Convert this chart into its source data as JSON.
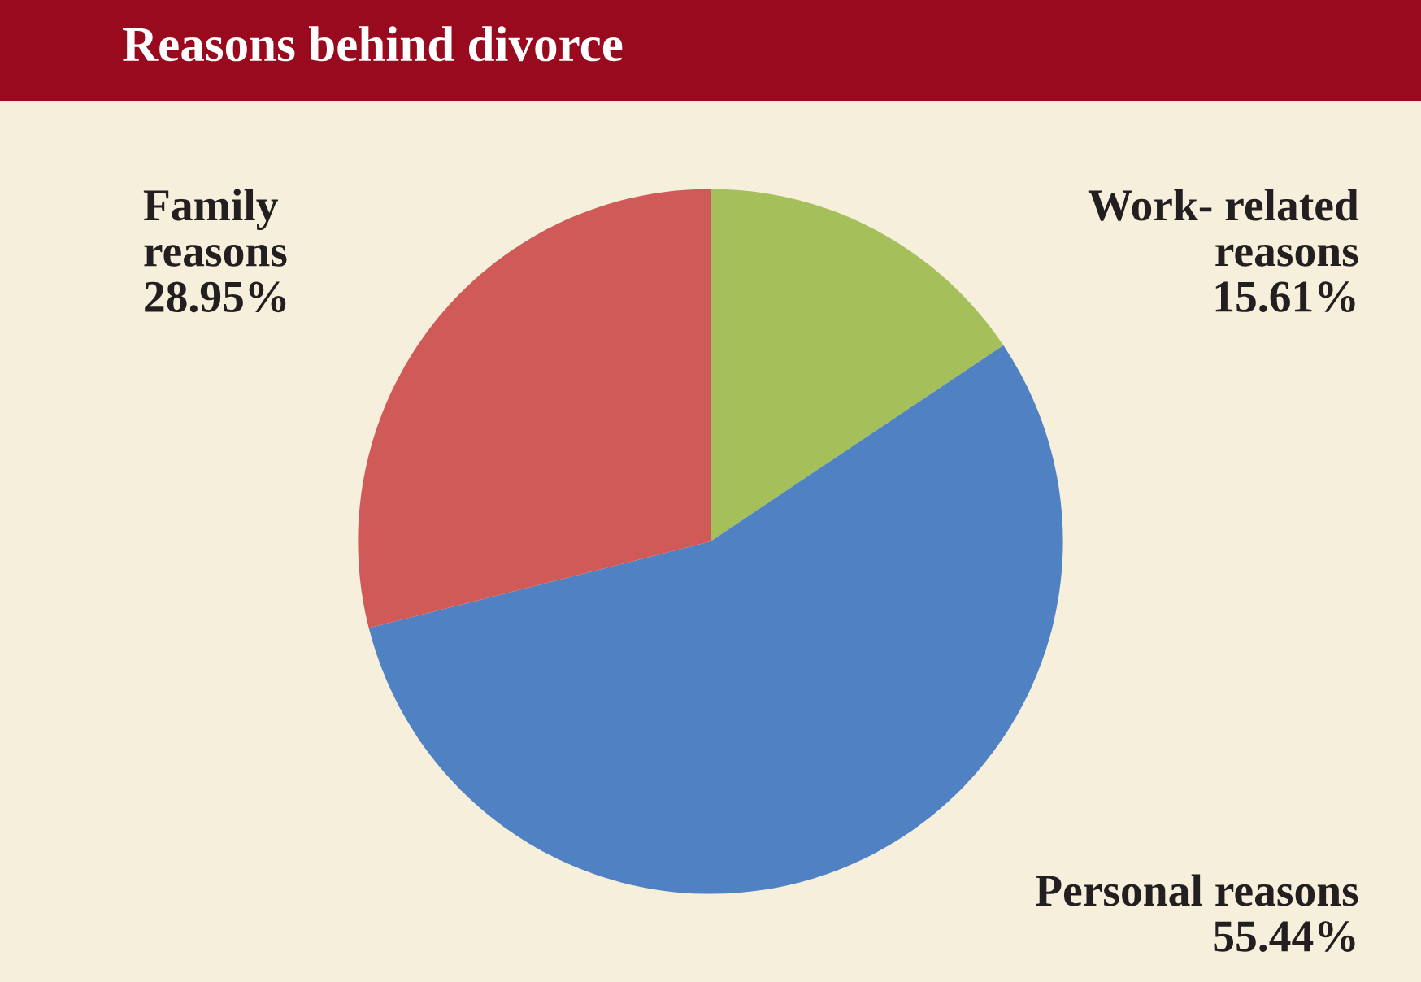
{
  "chart_data": {
    "type": "pie",
    "title": "Reasons behind divorce",
    "categories": [
      "Work- related\nreasons",
      "Personal reasons",
      "Family\nreasons"
    ],
    "values": [
      15.61,
      55.44,
      28.95
    ],
    "colors": [
      "#a5c05a",
      "#4f81c3",
      "#d05a58"
    ],
    "value_labels": [
      "15.61%",
      "55.44%",
      "28.95%"
    ]
  }
}
